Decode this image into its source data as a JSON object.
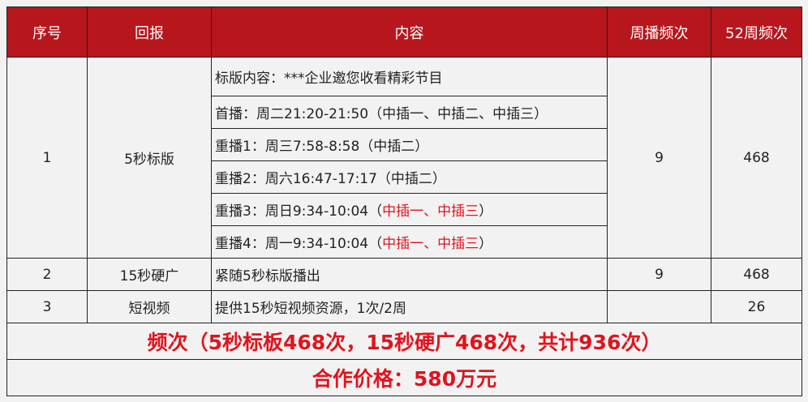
{
  "header": [
    "序号",
    "回报",
    "内容",
    "周播频次",
    "52周频次"
  ],
  "row1": {
    "no": "1",
    "item": "5秒标版",
    "weekly": "9",
    "yearly": "468",
    "lines": [
      {
        "text": "标版内容：***企业邀您收看精彩节目",
        "red": "",
        "tail": ""
      },
      {
        "text": "首播：周二21:20-21:50（中插一、中插二、中插三）",
        "red": "",
        "tail": ""
      },
      {
        "text": "重播1：周三7:58-8:58（中插二）",
        "red": "",
        "tail": ""
      },
      {
        "text": "重播2：周六16:47-17:17（中插二）",
        "red": "",
        "tail": ""
      },
      {
        "text": "重播3：周日9:34-10:04（",
        "red": "中插一、中插三",
        "tail": "）"
      },
      {
        "text": "重播4：周一9:34-10:04（",
        "red": "中插一、中插三",
        "tail": "）"
      }
    ]
  },
  "row2": {
    "no": "2",
    "item": "15秒硬广",
    "content": "紧随5秒标版播出",
    "weekly": "9",
    "yearly": "468"
  },
  "row3": {
    "no": "3",
    "item": "短视频",
    "content": "提供15秒短视频资源，1次/2周",
    "weekly": "",
    "yearly": "26"
  },
  "summary": "频次（5秒标板468次，15秒硬广468次，共计936次）",
  "price": "合作价格：580万元",
  "colors": {
    "header_bg": "#b8161d",
    "highlight": "#e0141e"
  }
}
